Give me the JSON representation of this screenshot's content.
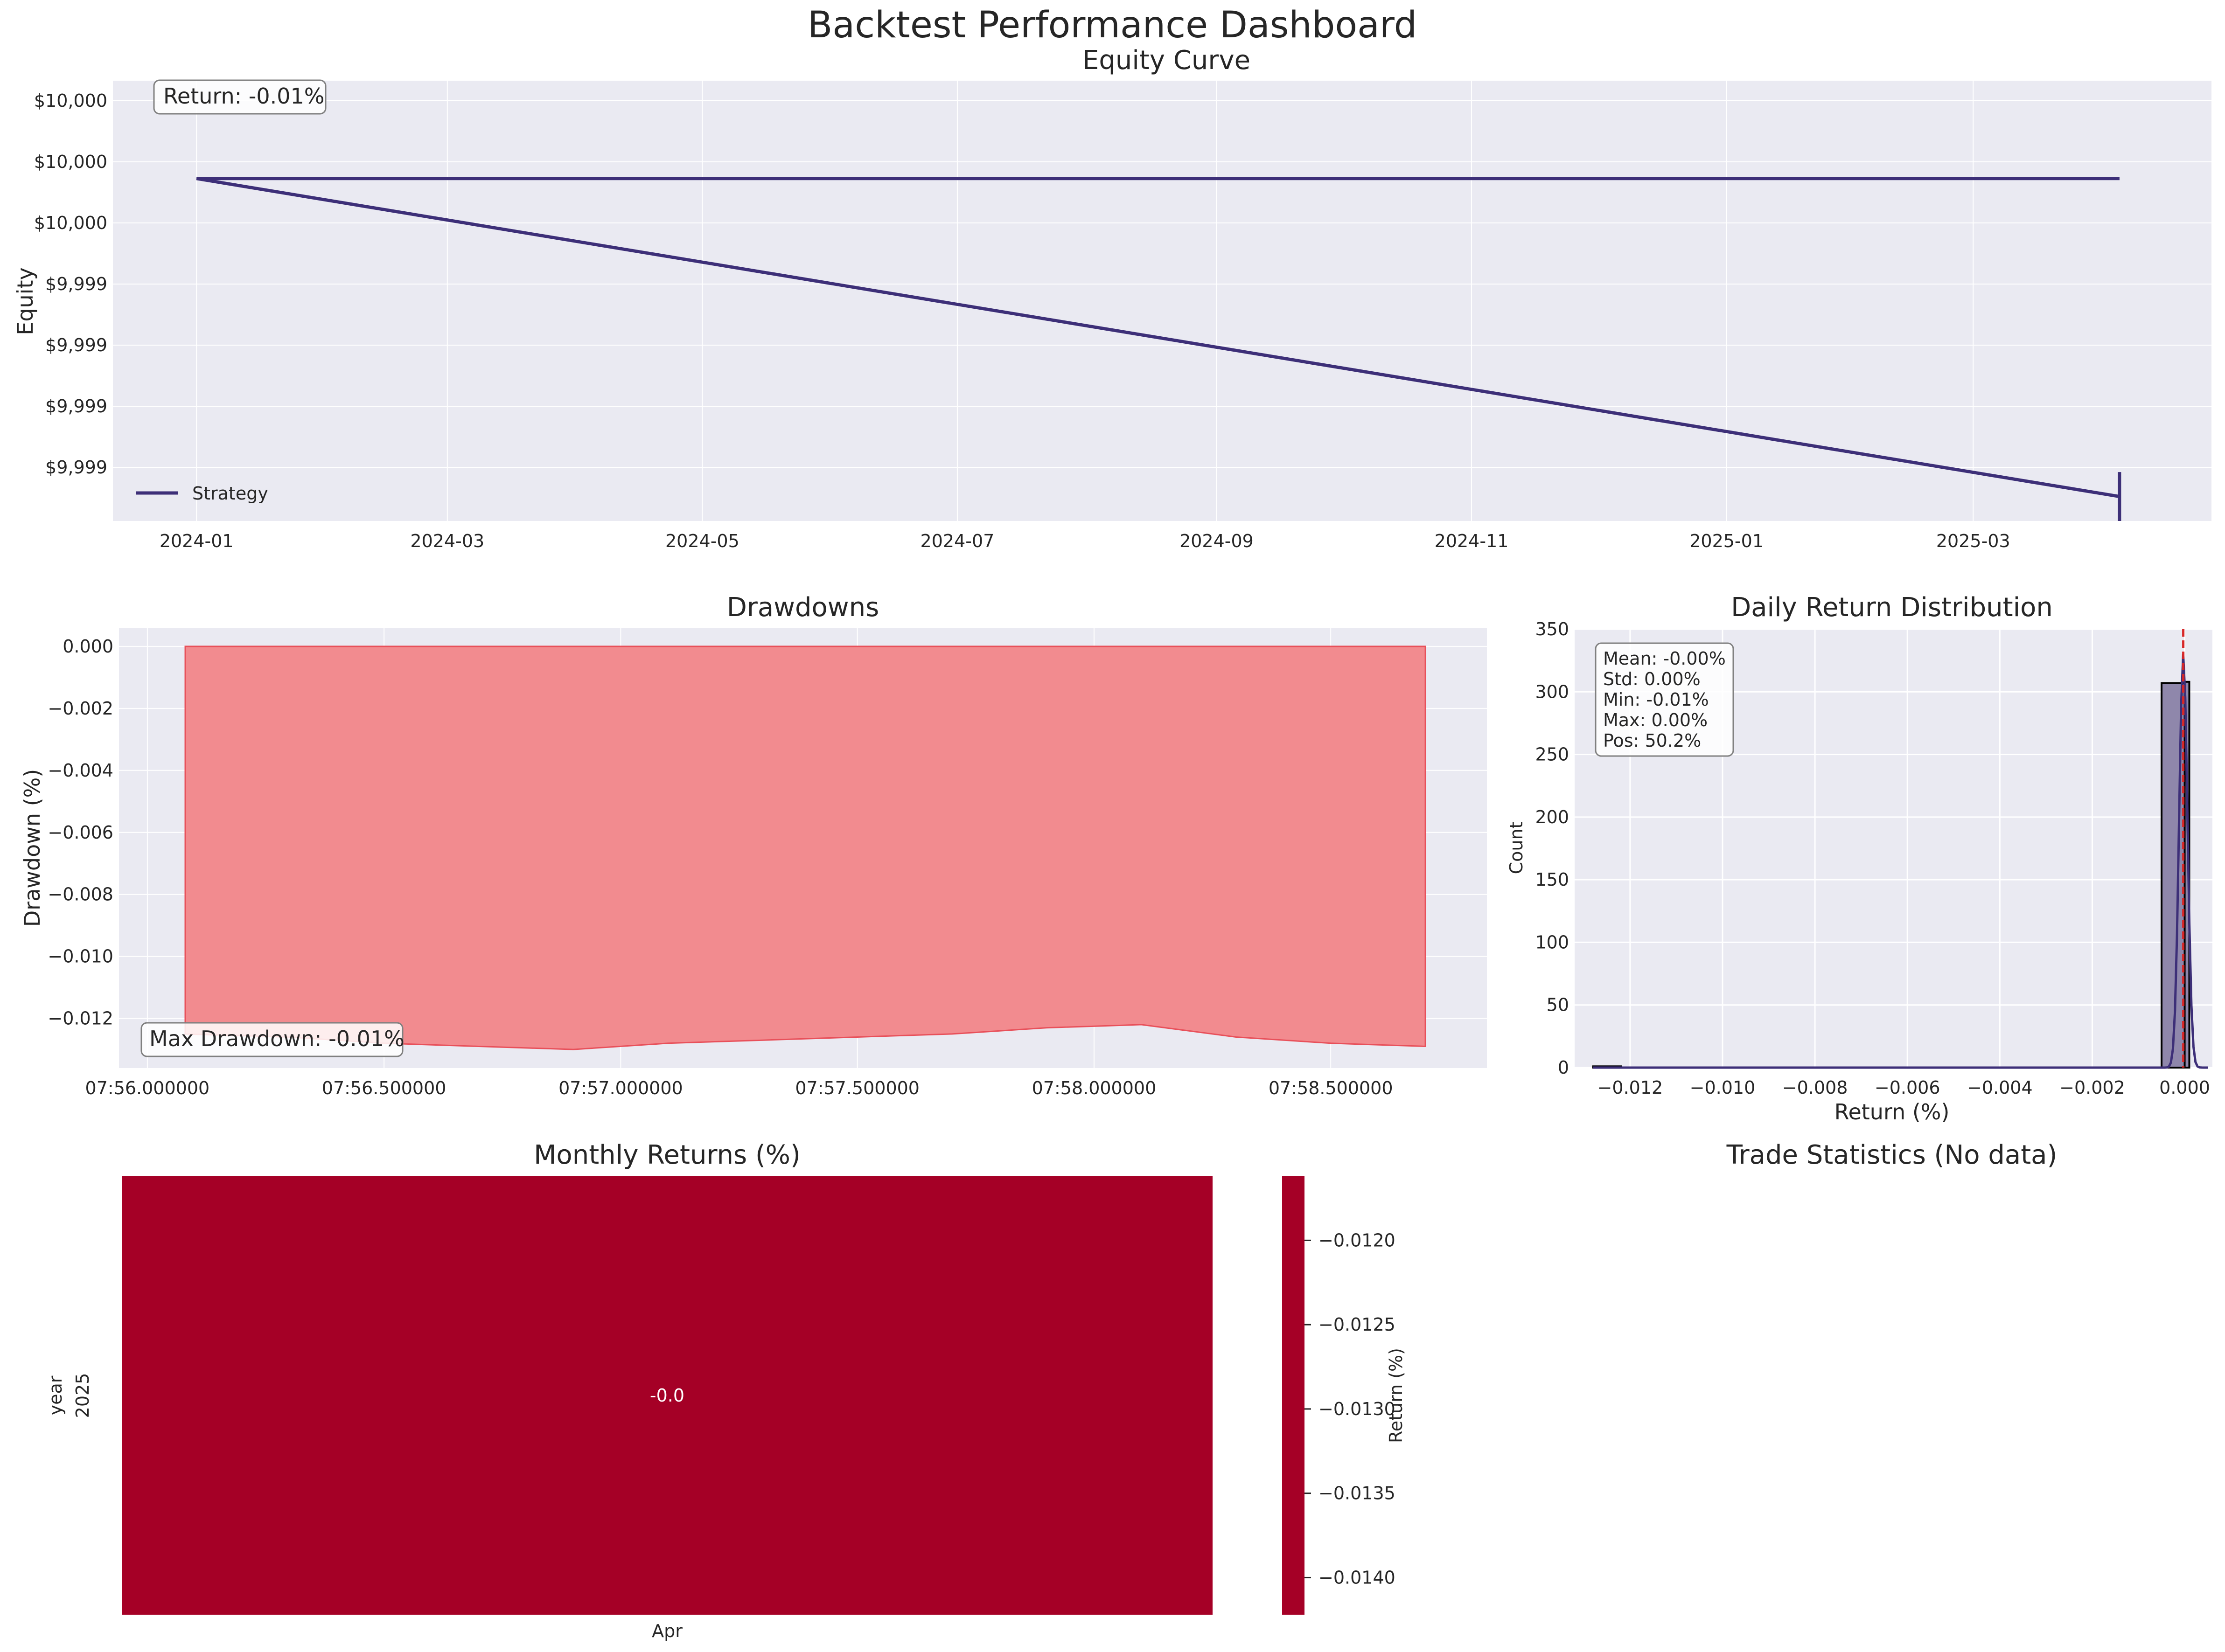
{
  "title": "Backtest Performance Dashboard",
  "colors": {
    "panel_bg": "#eaeaf2",
    "grid": "#ffffff",
    "equity_line": "#3d2f78",
    "drawdown_fill": "#f28b8f",
    "drawdown_edge": "#e8505a",
    "hist_bar": "#8f87ab",
    "kde": "#3d2f78",
    "mean_line": "#d62728",
    "heatmap_cell": "#a50026"
  },
  "chart_data": [
    {
      "id": "equity",
      "type": "line",
      "title": "Equity Curve",
      "ylabel": "Equity",
      "xlabel": "",
      "annotation": "Return: -0.01%",
      "legend": {
        "label": "Strategy",
        "placement": "lower-left"
      },
      "x_ticks": [
        "2024-01",
        "2024-03",
        "2024-05",
        "2024-07",
        "2024-09",
        "2024-11",
        "2025-01",
        "2025-03"
      ],
      "y_ticks": [
        "$10,000",
        "$10,000",
        "$10,000",
        "$9,999",
        "$9,999",
        "$9,999",
        "$9,999"
      ],
      "xlim": [
        "2023-12-12",
        "2025-04-27"
      ],
      "ylim": [
        9998.6,
        10000.4
      ],
      "grid": true,
      "series": [
        {
          "x": [
            "2024-01-01",
            "2024-01-01",
            "2025-04-05"
          ],
          "y": [
            10000.0,
            10000.0,
            10000.0
          ]
        },
        {
          "x": [
            "2024-01-01",
            "2025-04-05"
          ],
          "y": [
            10000.0,
            9998.7
          ]
        },
        {
          "x": [
            "2025-04-05",
            "2025-04-05"
          ],
          "y": [
            9998.6,
            9998.8
          ]
        }
      ]
    },
    {
      "id": "drawdowns",
      "type": "area",
      "title": "Drawdowns",
      "ylabel": "Drawdown (%)",
      "xlabel": "",
      "annotation": "Max Drawdown: -0.01%",
      "x_ticks": [
        "07:56.000000",
        "07:56.500000",
        "07:57.000000",
        "07:57.500000",
        "07:58.000000",
        "07:58.500000"
      ],
      "y_ticks": [
        "0.000",
        "−0.002",
        "−0.004",
        "−0.006",
        "−0.008",
        "−0.010",
        "−0.012"
      ],
      "xlim": [
        -0.06,
        2.83
      ],
      "ylim": [
        -0.0136,
        0.0006
      ],
      "grid": true,
      "x_seconds_after_07_56": [
        0.08,
        0.3,
        0.5,
        0.7,
        0.9,
        1.1,
        1.3,
        1.5,
        1.7,
        1.9,
        2.1,
        2.3,
        2.5,
        2.7
      ],
      "y": [
        -0.0125,
        -0.0126,
        -0.0128,
        -0.0129,
        -0.013,
        -0.0128,
        -0.0127,
        -0.0126,
        -0.0125,
        -0.0123,
        -0.0122,
        -0.0126,
        -0.0128,
        -0.0129
      ]
    },
    {
      "id": "distribution",
      "type": "bar",
      "title": "Daily Return Distribution",
      "xlabel": "Return (%)",
      "ylabel": "Count",
      "x_ticks": [
        "−0.012",
        "−0.010",
        "−0.008",
        "−0.006",
        "−0.004",
        "−0.002",
        "0.000"
      ],
      "y_ticks": [
        "0",
        "50",
        "100",
        "150",
        "200",
        "250",
        "300",
        "350"
      ],
      "xlim": [
        -0.0132,
        0.0006
      ],
      "ylim": [
        0,
        350
      ],
      "grid": true,
      "bars": [
        {
          "x0": -0.0128,
          "x1": -0.0122,
          "count": 1
        },
        {
          "x0": -0.0005,
          "x1": 0.0,
          "count": 307
        },
        {
          "x0": 0.0,
          "x1": 0.0001,
          "count": 308
        }
      ],
      "kde_peak": 330,
      "mean": -3e-05,
      "stats": [
        "Mean: -0.00%",
        "Std: 0.00%",
        "Min: -0.01%",
        "Max: 0.00%",
        "Pos: 50.2%"
      ]
    },
    {
      "id": "monthly",
      "type": "heatmap",
      "title": "Monthly Returns (%)",
      "rows": [
        "2025"
      ],
      "row_label": "year",
      "columns": [
        "Apr"
      ],
      "values": [
        [
          -0.0
        ]
      ],
      "value_labels": [
        [
          "-0.0"
        ]
      ],
      "colorbar": {
        "label": "Return (%)",
        "ticks": [
          "−0.0120",
          "−0.0125",
          "−0.0130",
          "−0.0135",
          "−0.0140"
        ],
        "tick_values": [
          -0.012,
          -0.0125,
          -0.013,
          -0.0135,
          -0.014
        ],
        "range": [
          -0.01422,
          -0.01162
        ]
      }
    },
    {
      "id": "trades",
      "type": "table",
      "title": "Trade Statistics (No data)"
    }
  ]
}
